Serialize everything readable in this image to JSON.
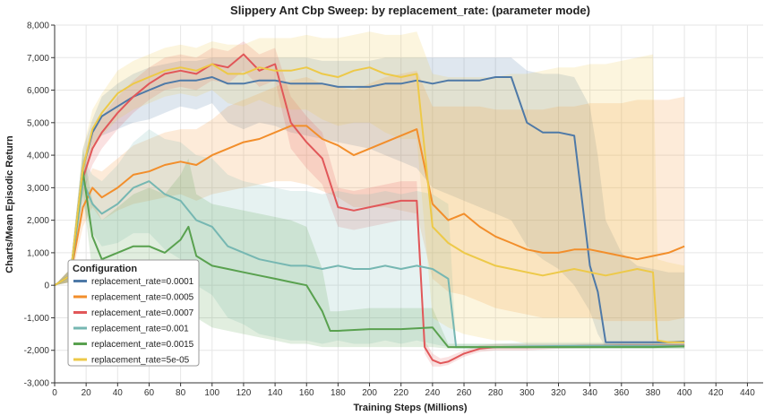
{
  "chart_data": {
    "type": "line",
    "title": "Slippery Ant Cbp Sweep: by replacement_rate: (parameter mode)",
    "xlabel": "Training Steps (Millions)",
    "ylabel": "Charts/Mean Episodic Return",
    "xlim": [
      0,
      450
    ],
    "ylim": [
      -3000,
      8000
    ],
    "xticks": [
      0,
      20,
      40,
      60,
      80,
      100,
      120,
      140,
      160,
      180,
      200,
      220,
      240,
      260,
      280,
      300,
      320,
      340,
      360,
      380,
      400,
      420,
      440
    ],
    "yticks": [
      -3000,
      -2000,
      -1000,
      0,
      1000,
      2000,
      3000,
      4000,
      5000,
      6000,
      7000,
      8000
    ],
    "ytick_labels": [
      "-3,000",
      "-2,000",
      "-1,000",
      "0",
      "1,000",
      "2,000",
      "3,000",
      "4,000",
      "5,000",
      "6,000",
      "7,000",
      "8,000"
    ],
    "grid": true,
    "legend": {
      "title": "Configuration",
      "placement": "bottom-left"
    },
    "series": [
      {
        "name": "replacement_rate=0.0001",
        "color": "#4e79a7",
        "x": [
          0,
          10,
          18,
          24,
          30,
          40,
          50,
          60,
          70,
          80,
          90,
          100,
          110,
          120,
          130,
          140,
          150,
          160,
          170,
          180,
          190,
          200,
          210,
          220,
          230,
          240,
          250,
          260,
          270,
          280,
          290,
          300,
          310,
          320,
          330,
          340,
          345,
          350,
          360,
          370,
          380,
          390,
          400
        ],
        "y": [
          0,
          300,
          3600,
          4700,
          5200,
          5500,
          5800,
          6000,
          6200,
          6300,
          6300,
          6400,
          6200,
          6200,
          6300,
          6300,
          6200,
          6200,
          6200,
          6100,
          6100,
          6100,
          6200,
          6200,
          6300,
          6200,
          6300,
          6300,
          6300,
          6400,
          6400,
          5000,
          4700,
          4700,
          4600,
          600,
          -200,
          -1750,
          -1750,
          -1750,
          -1750,
          -1750,
          -1730
        ],
        "band_low": [
          0,
          100,
          3000,
          4300,
          4600,
          4800,
          5000,
          5100,
          5300,
          5500,
          5400,
          5600,
          5000,
          4800,
          5000,
          4900,
          4700,
          4600,
          4500,
          4400,
          4300,
          4200,
          4000,
          3800,
          3600,
          3000,
          2800,
          2600,
          2400,
          2200,
          2000,
          1200,
          800,
          500,
          0,
          -800,
          -1500,
          -1900,
          -1900,
          -1900,
          -1900,
          -1900,
          -1900
        ],
        "band_high": [
          0,
          500,
          4200,
          5100,
          5800,
          6200,
          6500,
          6700,
          6800,
          6900,
          6900,
          7000,
          7000,
          7000,
          7000,
          7000,
          7000,
          7000,
          6900,
          6900,
          6900,
          6900,
          7000,
          7000,
          7000,
          7000,
          7000,
          7000,
          7000,
          7000,
          7000,
          6600,
          6500,
          6500,
          6400,
          5500,
          4000,
          2000,
          1000,
          600,
          500,
          400,
          400
        ]
      },
      {
        "name": "replacement_rate=0.0005",
        "color": "#f28e2b",
        "x": [
          0,
          10,
          18,
          24,
          30,
          40,
          50,
          60,
          70,
          80,
          90,
          100,
          110,
          120,
          130,
          140,
          150,
          160,
          170,
          180,
          190,
          200,
          210,
          220,
          230,
          240,
          250,
          260,
          270,
          280,
          290,
          300,
          310,
          320,
          330,
          340,
          350,
          360,
          370,
          380,
          390,
          400
        ],
        "y": [
          0,
          300,
          2400,
          3000,
          2700,
          3000,
          3400,
          3500,
          3700,
          3800,
          3700,
          4000,
          4200,
          4400,
          4500,
          4700,
          4900,
          4900,
          4500,
          4300,
          4000,
          4200,
          4400,
          4600,
          4800,
          2500,
          2000,
          2200,
          1800,
          1500,
          1300,
          1100,
          1000,
          1000,
          1100,
          1100,
          1000,
          900,
          800,
          900,
          1000,
          1200
        ],
        "band_low": [
          0,
          100,
          1800,
          2400,
          2000,
          2300,
          2500,
          2600,
          2700,
          2800,
          2600,
          2800,
          2900,
          3000,
          3100,
          3200,
          3200,
          3100,
          2900,
          2700,
          2400,
          2400,
          2400,
          2300,
          2200,
          200,
          -200,
          -300,
          -500,
          -700,
          -800,
          -900,
          -1000,
          -1000,
          -1000,
          -1000,
          -1100,
          -1100,
          -1100,
          -1100,
          -1100,
          -1000
        ],
        "band_high": [
          0,
          500,
          3000,
          3600,
          3500,
          3900,
          4300,
          4500,
          4700,
          4800,
          4800,
          5100,
          5500,
          5700,
          5900,
          6100,
          6300,
          6400,
          6200,
          6100,
          6000,
          6200,
          6400,
          6500,
          6600,
          5500,
          5500,
          5500,
          5500,
          5400,
          5400,
          5400,
          5400,
          5500,
          5500,
          5600,
          5600,
          5600,
          5700,
          5700,
          5700,
          5800
        ]
      },
      {
        "name": "replacement_rate=0.0007",
        "color": "#e15759",
        "x": [
          0,
          10,
          18,
          24,
          30,
          40,
          50,
          60,
          70,
          80,
          90,
          100,
          110,
          120,
          130,
          140,
          150,
          160,
          170,
          180,
          190,
          200,
          210,
          220,
          230,
          235,
          240,
          245,
          250,
          260,
          270,
          280,
          290,
          300,
          320,
          340,
          360,
          380,
          400
        ],
        "y": [
          0,
          300,
          3300,
          4200,
          4700,
          5300,
          5800,
          6200,
          6500,
          6600,
          6500,
          6800,
          6700,
          7100,
          6600,
          6800,
          5000,
          4400,
          3900,
          2400,
          2300,
          2400,
          2500,
          2600,
          2600,
          -1900,
          -2300,
          -2400,
          -2350,
          -2100,
          -1950,
          -1900,
          -1900,
          -1900,
          -1880,
          -1860,
          -1850,
          -1850,
          -1850
        ],
        "band_low": [
          0,
          100,
          2800,
          3700,
          4200,
          4800,
          5300,
          5700,
          6000,
          6100,
          6000,
          6300,
          6200,
          6600,
          6100,
          6300,
          4200,
          3600,
          3100,
          1800,
          1700,
          1800,
          1900,
          2000,
          2000,
          -2100,
          -2500,
          -2500,
          -2450,
          -2200,
          -2050,
          -2000,
          -2000,
          -2000,
          -1950,
          -1930,
          -1920,
          -1920,
          -1920
        ],
        "band_high": [
          0,
          500,
          3800,
          4700,
          5200,
          5800,
          6300,
          6700,
          7000,
          7100,
          7000,
          7300,
          7200,
          7500,
          7100,
          7300,
          5800,
          5200,
          4700,
          3000,
          2900,
          3000,
          3100,
          3200,
          3200,
          -1700,
          -2100,
          -2250,
          -2200,
          -2000,
          -1850,
          -1800,
          -1800,
          -1800,
          -1800,
          -1790,
          -1780,
          -1780,
          -1780
        ]
      },
      {
        "name": "replacement_rate=0.001",
        "color": "#76b7b2",
        "x": [
          0,
          10,
          18,
          24,
          30,
          40,
          50,
          60,
          70,
          80,
          90,
          100,
          110,
          120,
          130,
          140,
          150,
          160,
          170,
          180,
          190,
          200,
          210,
          220,
          230,
          240,
          250,
          255,
          260,
          280,
          300,
          320,
          340,
          360,
          380,
          400
        ],
        "y": [
          0,
          300,
          3200,
          2500,
          2200,
          2500,
          3000,
          3200,
          2800,
          2600,
          2000,
          1800,
          1200,
          1000,
          800,
          700,
          600,
          600,
          500,
          600,
          500,
          500,
          600,
          500,
          600,
          500,
          200,
          -1900,
          -1900,
          -1900,
          -1880,
          -1870,
          -1860,
          -1860,
          -1860,
          -1860
        ],
        "band_low": [
          0,
          100,
          2500,
          1600,
          1200,
          1300,
          1600,
          1600,
          1100,
          800,
          0,
          -300,
          -1000,
          -1200,
          -1500,
          -1600,
          -1700,
          -1700,
          -1800,
          -1700,
          -1800,
          -1800,
          -1700,
          -1800,
          -1700,
          -1800,
          -1900,
          -1950,
          -1950,
          -1950,
          -1950,
          -1950,
          -1950,
          -1950,
          -1950,
          -1950
        ],
        "band_high": [
          0,
          500,
          3900,
          3400,
          3200,
          3700,
          4400,
          4800,
          4500,
          4400,
          4000,
          3900,
          3400,
          3200,
          3100,
          3000,
          2900,
          2900,
          2800,
          2900,
          2800,
          2800,
          2900,
          2800,
          2900,
          2800,
          2500,
          -1800,
          -1800,
          -1800,
          -1750,
          -1750,
          -1750,
          -1750,
          -1750,
          -1750
        ]
      },
      {
        "name": "replacement_rate=0.0015",
        "color": "#59a14f",
        "x": [
          0,
          10,
          18,
          24,
          30,
          40,
          50,
          60,
          70,
          80,
          85,
          90,
          100,
          110,
          120,
          130,
          140,
          150,
          160,
          170,
          175,
          180,
          200,
          220,
          240,
          250,
          260,
          280,
          300,
          320,
          340,
          360,
          380,
          400
        ],
        "y": [
          0,
          300,
          3500,
          1500,
          800,
          1000,
          1200,
          1200,
          1000,
          1400,
          1800,
          900,
          600,
          500,
          400,
          300,
          200,
          100,
          0,
          -800,
          -1400,
          -1400,
          -1350,
          -1350,
          -1300,
          -1900,
          -1900,
          -1900,
          -1900,
          -1900,
          -1900,
          -1900,
          -1900,
          -1880
        ],
        "band_low": [
          0,
          100,
          2800,
          400,
          -400,
          -400,
          -400,
          -600,
          -800,
          -600,
          -300,
          -1000,
          -1300,
          -1400,
          -1500,
          -1600,
          -1700,
          -1800,
          -1800,
          -1900,
          -1900,
          -1900,
          -1900,
          -1900,
          -1900,
          -1950,
          -1950,
          -1950,
          -1950,
          -1950,
          -1950,
          -1950,
          -1950,
          -1950
        ],
        "band_high": [
          0,
          500,
          4200,
          2600,
          2000,
          2400,
          2800,
          3000,
          2800,
          3400,
          3900,
          2800,
          2500,
          2400,
          2300,
          2200,
          2100,
          2000,
          1800,
          500,
          -800,
          -800,
          -700,
          -700,
          -700,
          -1800,
          -1800,
          -1800,
          -1800,
          -1800,
          -1800,
          -1800,
          -1800,
          -1800
        ]
      },
      {
        "name": "replacement_rate=5e-05",
        "color": "#edc948",
        "x": [
          0,
          10,
          18,
          24,
          30,
          40,
          50,
          60,
          70,
          80,
          90,
          100,
          110,
          120,
          130,
          140,
          150,
          160,
          170,
          180,
          190,
          200,
          210,
          220,
          230,
          240,
          250,
          260,
          270,
          280,
          290,
          300,
          310,
          320,
          330,
          340,
          350,
          360,
          370,
          380,
          383,
          390,
          400
        ],
        "y": [
          0,
          300,
          3600,
          4800,
          5300,
          5900,
          6200,
          6400,
          6600,
          6700,
          6600,
          6800,
          6500,
          6500,
          6700,
          6600,
          6600,
          6700,
          6500,
          6400,
          6600,
          6700,
          6500,
          6400,
          6500,
          1800,
          1300,
          1000,
          800,
          600,
          500,
          400,
          300,
          400,
          500,
          400,
          300,
          400,
          500,
          400,
          -1700,
          -1750,
          -1750
        ],
        "band_low": [
          0,
          100,
          3000,
          4200,
          4600,
          5100,
          5400,
          5600,
          5800,
          5900,
          5800,
          6000,
          5600,
          5500,
          5700,
          5500,
          5400,
          5400,
          5100,
          4900,
          5000,
          5000,
          4700,
          4500,
          4500,
          -1000,
          -1300,
          -1500,
          -1600,
          -1700,
          -1700,
          -1800,
          -1800,
          -1800,
          -1800,
          -1800,
          -1800,
          -1800,
          -1800,
          -1800,
          -1900,
          -1900,
          -1900
        ],
        "band_high": [
          0,
          500,
          4200,
          5400,
          5900,
          6600,
          6900,
          7100,
          7300,
          7400,
          7300,
          7500,
          7400,
          7400,
          7600,
          7600,
          7600,
          7700,
          7600,
          7600,
          7700,
          7800,
          7700,
          7700,
          7800,
          6500,
          6400,
          6400,
          6400,
          6400,
          6500,
          6500,
          6600,
          6700,
          6700,
          6800,
          6800,
          6900,
          7000,
          7100,
          800,
          700,
          600
        ]
      }
    ]
  }
}
